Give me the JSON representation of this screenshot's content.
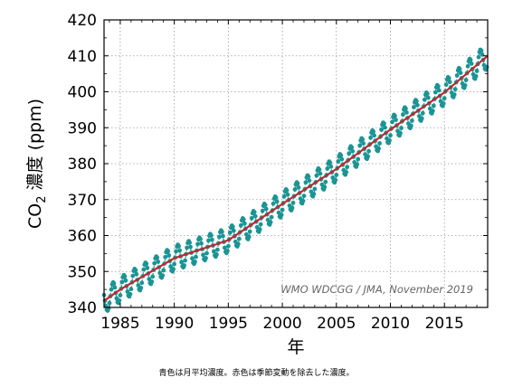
{
  "chart_data": {
    "type": "line",
    "xlabel": "年",
    "ylabel_prefix": "CO",
    "ylabel_sub": "2",
    "ylabel_suffix": " 濃度 (ppm)",
    "xlim": [
      1983.5,
      2019.0
    ],
    "ylim": [
      340,
      420
    ],
    "xticks": [
      1985,
      1990,
      1995,
      2000,
      2005,
      2010,
      2015
    ],
    "yticks": [
      340,
      350,
      360,
      370,
      380,
      390,
      400,
      410,
      420
    ],
    "grid": true,
    "credit": "WMO WDCGG / JMA, November 2019",
    "series": [
      {
        "key": "monthly",
        "color": "#1b9494",
        "marker": "circle",
        "x_start": 1983.5,
        "x_end": 2018.92,
        "monthly_trend_anchors": {
          "x": [
            1983.5,
            1985,
            1990,
            1995,
            2000,
            2005,
            2010,
            2015,
            2019
          ],
          "y": [
            341.8,
            345.0,
            353.7,
            358.7,
            368.8,
            378.5,
            389.5,
            399.8,
            410.0
          ]
        },
        "seasonal_amplitude": 3.4
      },
      {
        "key": "deseasonalized",
        "color": "#c0282d",
        "marker": "none",
        "x": [
          1983.5,
          1985,
          1990,
          1995,
          2000,
          2005,
          2010,
          2015,
          2019
        ],
        "y": [
          341.8,
          345.0,
          353.7,
          358.7,
          368.8,
          378.5,
          389.5,
          399.8,
          410.0
        ]
      }
    ]
  },
  "caption": "青色は月平均濃度。赤色は季節変動を除去した濃度。"
}
